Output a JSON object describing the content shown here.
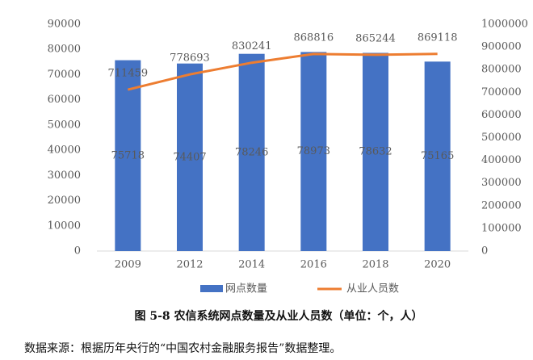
{
  "chart_data": {
    "type": "bar",
    "title": "图 5-8 农信系统网点数量及从业人员数（单位：个，人）",
    "source": "数据来源：根据历年央行的“中国农村金融服务报告”数据整理。",
    "categories": [
      "2009",
      "2012",
      "2014",
      "2016",
      "2018",
      "2020"
    ],
    "series": [
      {
        "name": "网点数量",
        "color": "#4472c4",
        "kind": "bar",
        "values": [
          75718,
          74407,
          78246,
          78973,
          78632,
          75165
        ]
      },
      {
        "name": "从业人员数",
        "color": "#ed7d31",
        "kind": "line",
        "axis": "y2",
        "values": [
          711459,
          778693,
          830241,
          868816,
          865244,
          869118
        ]
      }
    ],
    "ylim": [
      0,
      90000
    ],
    "yticks": [
      0,
      10000,
      20000,
      30000,
      40000,
      50000,
      60000,
      70000,
      80000,
      90000
    ],
    "y2lim": [
      0,
      1000000
    ],
    "y2ticks": [
      0,
      100000,
      200000,
      300000,
      400000,
      500000,
      600000,
      700000,
      800000,
      900000,
      1000000
    ],
    "legend": "bottom"
  }
}
